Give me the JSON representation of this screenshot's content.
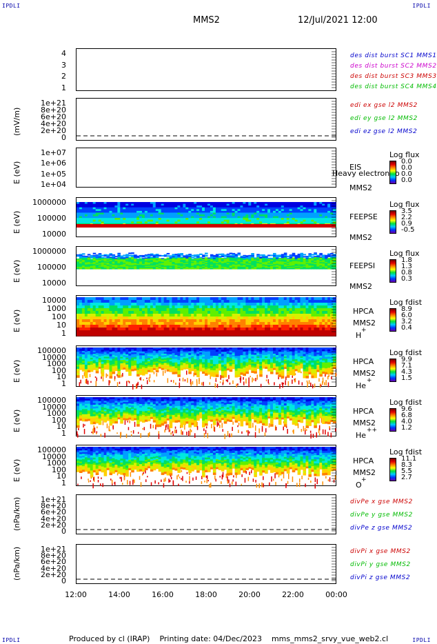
{
  "corners": {
    "tl": "IPDLI",
    "tr": "IPDLI",
    "bl": "IPDLI",
    "br": "IPDLI"
  },
  "header": {
    "spacecraft": "MMS2",
    "datetime": "12/Jul/2021 12:00"
  },
  "footer": {
    "text": "Produced by cl (IRAP)    Printing date: 04/Dec/2023    mms_mms2_srvy_vue_web2.cl"
  },
  "x_axis": {
    "ticks": [
      "12:00",
      "14:00",
      "16:00",
      "18:00",
      "20:00",
      "22:00",
      "00:00"
    ]
  },
  "colors": {
    "blue": "#0000cc",
    "magenta": "#cc00cc",
    "red": "#cc0000",
    "green": "#00bb00"
  },
  "chart_data": [
    {
      "type": "line",
      "panel": "des-dist-burst",
      "yticks": [
        "1",
        "2",
        "3",
        "4"
      ],
      "legend": [
        {
          "label": "des dist burst SC1 MMS1",
          "color": "#0000cc"
        },
        {
          "label": "des dist burst SC2 MMS2",
          "color": "#cc00cc"
        },
        {
          "label": "des dist burst SC3 MMS3",
          "color": "#cc0000"
        },
        {
          "label": "des dist burst SC4 MMS4",
          "color": "#00bb00"
        }
      ]
    },
    {
      "type": "line",
      "panel": "edi-e-gse",
      "ylabel": "(mV/m)",
      "yticks": [
        "0",
        "2e+20",
        "4e+20",
        "6e+20",
        "8e+20",
        "1e+21"
      ],
      "legend": [
        {
          "label": "edi ex gse l2 MMS2",
          "color": "#cc0000"
        },
        {
          "label": "edi ey gse l2 MMS2",
          "color": "#00bb00"
        },
        {
          "label": "edi ez gse l2 MMS2",
          "color": "#0000cc"
        }
      ]
    },
    {
      "type": "heatmap",
      "panel": "eis",
      "ylabel": "E (eV)",
      "yticks": [
        "1e+04",
        "1e+05",
        "1e+06",
        "1e+07"
      ],
      "instrument": "EIS",
      "overlay": "Heavy electron to",
      "sc": "MMS2",
      "colorbar": {
        "title": "Log flux",
        "values": [
          "0.0",
          "0.0",
          "0.0",
          "0.0"
        ]
      }
    },
    {
      "type": "heatmap",
      "panel": "feeps-e",
      "ylabel": "E (eV)",
      "yticks": [
        "10000",
        "100000",
        "1000000"
      ],
      "instrument": "FEEPSE",
      "sc": "MMS2",
      "colorbar": {
        "title": "Log flux",
        "values": [
          "3.5",
          "2.2",
          "0.9",
          "-0.5"
        ]
      }
    },
    {
      "type": "heatmap",
      "panel": "feeps-i",
      "ylabel": "E (eV)",
      "yticks": [
        "10000",
        "100000",
        "1000000"
      ],
      "instrument": "FEEPSI",
      "sc": "MMS2",
      "colorbar": {
        "title": "Log flux",
        "values": [
          "1.8",
          "1.3",
          "0.8",
          "0.3"
        ]
      }
    },
    {
      "type": "heatmap",
      "panel": "hpca-h",
      "ylabel": "E (eV)",
      "yticks": [
        "1",
        "10",
        "100",
        "1000",
        "10000"
      ],
      "instrument": "HPCA",
      "sc": "MMS2",
      "species": "H",
      "charge": "+",
      "colorbar": {
        "title": "Log fdist",
        "values": [
          "8.9",
          "6.0",
          "3.2",
          "0.4"
        ]
      }
    },
    {
      "type": "heatmap",
      "panel": "hpca-he",
      "ylabel": "E (eV)",
      "yticks": [
        "1",
        "10",
        "100",
        "1000",
        "10000",
        "100000"
      ],
      "instrument": "HPCA",
      "sc": "MMS2",
      "species": "He",
      "charge": "+",
      "colorbar": {
        "title": "Log fdist",
        "values": [
          "9.9",
          "7.1",
          "4.3",
          "1.5"
        ]
      }
    },
    {
      "type": "heatmap",
      "panel": "hpca-he2",
      "ylabel": "E (eV)",
      "yticks": [
        "1",
        "10",
        "100",
        "1000",
        "10000",
        "100000"
      ],
      "instrument": "HPCA",
      "sc": "MMS2",
      "species": "He",
      "charge": "++",
      "colorbar": {
        "title": "Log fdist",
        "values": [
          "9.6",
          "6.8",
          "4.0",
          "1.2"
        ]
      }
    },
    {
      "type": "heatmap",
      "panel": "hpca-o",
      "ylabel": "E (eV)",
      "yticks": [
        "1",
        "10",
        "100",
        "1000",
        "10000",
        "100000"
      ],
      "instrument": "HPCA",
      "sc": "MMS2",
      "species": "O",
      "charge": "+",
      "colorbar": {
        "title": "Log fdist",
        "values": [
          "11.1",
          "8.3",
          "5.5",
          "2.7"
        ]
      }
    },
    {
      "type": "line",
      "panel": "divpe",
      "ylabel": "(nPa/km)",
      "yticks": [
        "0",
        "2e+20",
        "4e+20",
        "6e+20",
        "8e+20",
        "1e+21"
      ],
      "legend": [
        {
          "label": "divPe x gse MMS2",
          "color": "#cc0000"
        },
        {
          "label": "divPe y gse MMS2",
          "color": "#00bb00"
        },
        {
          "label": "divPe z gse MMS2",
          "color": "#0000cc"
        }
      ]
    },
    {
      "type": "line",
      "panel": "divpi",
      "ylabel": "(nPa/km)",
      "yticks": [
        "0",
        "2e+20",
        "4e+20",
        "6e+20",
        "8e+20",
        "1e+21"
      ],
      "legend": [
        {
          "label": "divPi x gse MMS2",
          "color": "#cc0000"
        },
        {
          "label": "divPi y gse MMS2",
          "color": "#00bb00"
        },
        {
          "label": "divPi z gse MMS2",
          "color": "#0000cc"
        }
      ]
    }
  ]
}
